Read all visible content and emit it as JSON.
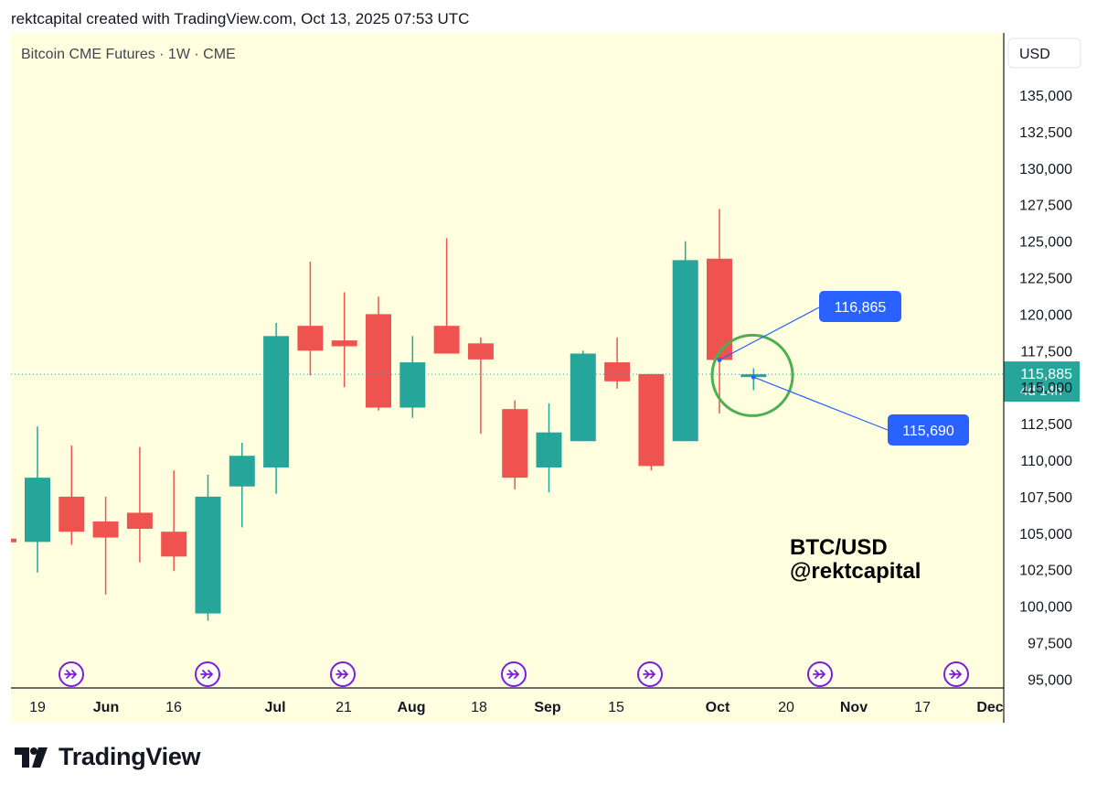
{
  "header": {
    "caption": "rektcapital created with TradingView.com, Oct 13, 2025 07:53 UTC"
  },
  "chart_title": "Bitcoin CME Futures · 1W · CME",
  "currency_label": "USD",
  "watermark": {
    "line1": "BTC/USD",
    "line2": "@rektcapital"
  },
  "brand": "TradingView",
  "colors": {
    "background": "#ffffe0",
    "bull": "#26a69a",
    "bear": "#ef5350",
    "callout": "#2962ff",
    "highlight_circle": "#4caf50",
    "event_icon": "#7b1fd6",
    "price_marker": "#26a69a"
  },
  "chart_data": {
    "type": "candlestick",
    "title": "Bitcoin CME Futures · 1W · CME",
    "ylim": [
      95000,
      135000
    ],
    "y_ticks": [
      "135,000",
      "132,500",
      "130,000",
      "127,500",
      "125,000",
      "122,500",
      "120,000",
      "117,500",
      "115,000",
      "112,500",
      "110,000",
      "107,500",
      "105,000",
      "102,500",
      "100,000",
      "97,500",
      "95,000"
    ],
    "x_ticks": [
      "19",
      "Jun",
      "16",
      "Jul",
      "21",
      "Aug",
      "18",
      "Sep",
      "15",
      "Oct",
      "20",
      "Nov",
      "17",
      "Dec"
    ],
    "bold_x_ticks": [
      "Jun",
      "Jul",
      "Aug",
      "Sep",
      "Oct",
      "Nov",
      "Dec"
    ],
    "candles": [
      {
        "open": 104400,
        "high": 112300,
        "low": 102300,
        "close": 108800
      },
      {
        "open": 107500,
        "high": 111000,
        "low": 104200,
        "close": 105100
      },
      {
        "open": 105800,
        "high": 107500,
        "low": 100800,
        "close": 104700
      },
      {
        "open": 106400,
        "high": 110900,
        "low": 103000,
        "close": 105300
      },
      {
        "open": 105100,
        "high": 109300,
        "low": 102400,
        "close": 103400
      },
      {
        "open": 99500,
        "high": 109000,
        "low": 99000,
        "close": 107500
      },
      {
        "open": 108200,
        "high": 111200,
        "low": 105400,
        "close": 110300
      },
      {
        "open": 109500,
        "high": 119400,
        "low": 107700,
        "close": 118500
      },
      {
        "open": 119200,
        "high": 123600,
        "low": 115800,
        "close": 117500
      },
      {
        "open": 118200,
        "high": 121500,
        "low": 115000,
        "close": 117800
      },
      {
        "open": 120000,
        "high": 121200,
        "low": 113400,
        "close": 113600
      },
      {
        "open": 113600,
        "high": 118500,
        "low": 112900,
        "close": 116700
      },
      {
        "open": 119200,
        "high": 125200,
        "low": 117300,
        "close": 117300
      },
      {
        "open": 118000,
        "high": 118400,
        "low": 111800,
        "close": 116900
      },
      {
        "open": 113500,
        "high": 114100,
        "low": 108000,
        "close": 108800
      },
      {
        "open": 109500,
        "high": 113900,
        "low": 107800,
        "close": 111900
      },
      {
        "open": 111300,
        "high": 117500,
        "low": 111300,
        "close": 117300
      },
      {
        "open": 116700,
        "high": 118400,
        "low": 114900,
        "close": 115400
      },
      {
        "open": 115900,
        "high": 115900,
        "low": 109300,
        "close": 109600
      },
      {
        "open": 111300,
        "high": 125000,
        "low": 111300,
        "close": 123700
      },
      {
        "open": 123800,
        "high": 127200,
        "low": 113200,
        "close": 116865
      },
      {
        "open": 115690,
        "high": 116300,
        "low": 114800,
        "close": 115885
      }
    ],
    "partial_candle_left": {
      "open": 104500,
      "close": 104300
    },
    "last_price": {
      "value": "115,885",
      "countdown": "4d 14h",
      "numeric": 115885
    },
    "callouts": [
      {
        "label": "116,865",
        "value": 116865
      },
      {
        "label": "115,690",
        "value": 115690
      }
    ],
    "highlight_circle_value": 115800,
    "event_markers_count": 7
  }
}
